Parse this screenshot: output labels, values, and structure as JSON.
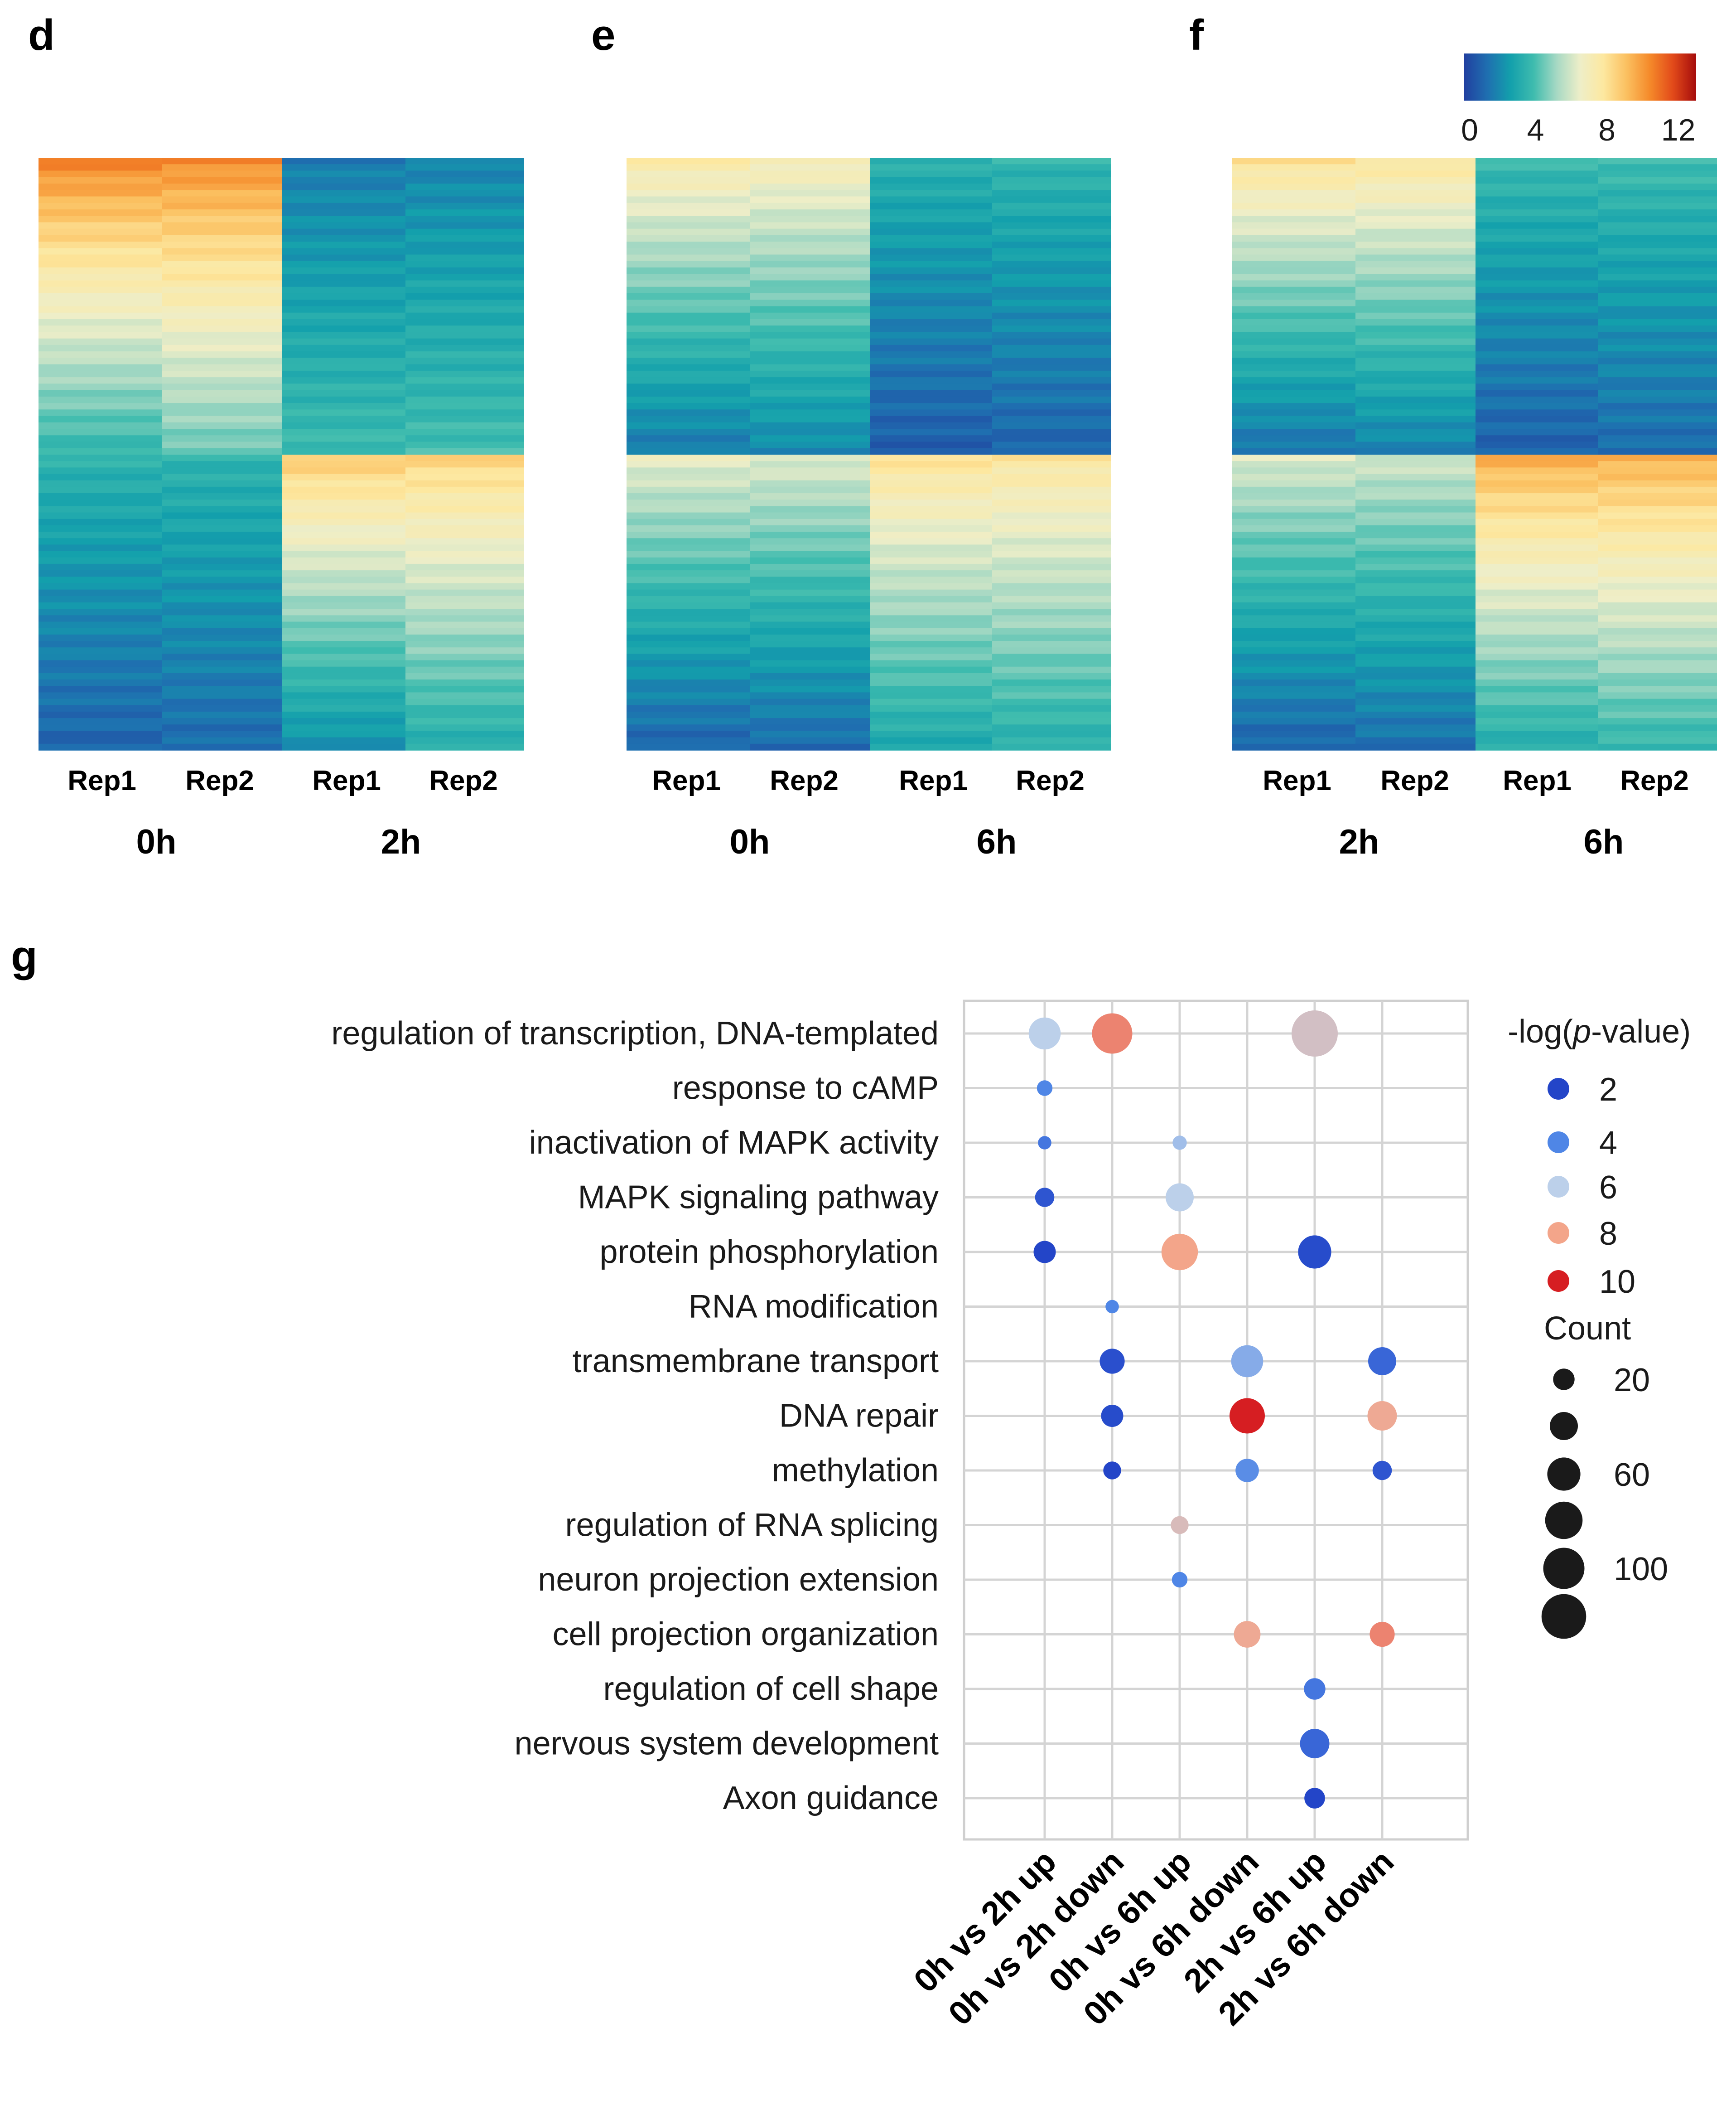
{
  "colors": {
    "heat_stops": [
      "#2140a0",
      "#1f6fb0",
      "#13a0ac",
      "#3fbcae",
      "#a8d9c4",
      "#eeeec8",
      "#fde8a0",
      "#fbc060",
      "#f58a2a",
      "#e24a1a",
      "#a50c0c"
    ],
    "pvalue_scale": [
      "#2345c8",
      "#4f86e6",
      "#bcd0ea",
      "#f3a58a",
      "#d61e22"
    ],
    "grid": "#d4d4d4"
  },
  "heatmaps": [
    {
      "letter": "d",
      "columns": [
        "Rep1",
        "Rep2",
        "Rep1",
        "Rep2"
      ],
      "timepoints": [
        "0h",
        "2h"
      ],
      "blocks": {
        "top": [
          [
            10.6,
            3.6
          ],
          [
            10.4,
            4.4
          ],
          [
            1.6,
            3.8
          ],
          [
            1.8,
            3.9
          ]
        ],
        "bottom": [
          [
            3.5,
            1.0
          ],
          [
            3.5,
            1.2
          ],
          [
            8.8,
            2.2
          ],
          [
            8.5,
            3.2
          ]
        ]
      }
    },
    {
      "letter": "e",
      "columns": [
        "Rep1",
        "Rep2",
        "Rep1",
        "Rep2"
      ],
      "timepoints": [
        "0h",
        "6h"
      ],
      "blocks": {
        "top": [
          [
            7.5,
            1.6
          ],
          [
            7.2,
            2.0
          ],
          [
            3.4,
            0.8
          ],
          [
            3.6,
            1.0
          ]
        ],
        "bottom": [
          [
            6.5,
            1.0
          ],
          [
            6.3,
            1.2
          ],
          [
            8.0,
            3.0
          ],
          [
            7.8,
            3.3
          ]
        ]
      }
    },
    {
      "letter": "f",
      "columns": [
        "Rep1",
        "Rep2",
        "Rep1",
        "Rep2"
      ],
      "timepoints": [
        "2h",
        "6h"
      ],
      "blocks": {
        "top": [
          [
            8.0,
            1.4
          ],
          [
            7.8,
            1.8
          ],
          [
            3.8,
            0.9
          ],
          [
            3.9,
            1.2
          ]
        ],
        "bottom": [
          [
            6.2,
            1.0
          ],
          [
            6.0,
            1.3
          ],
          [
            9.6,
            3.2
          ],
          [
            9.5,
            3.6
          ]
        ]
      }
    }
  ],
  "colorbar": {
    "ticks": [
      "0",
      "4",
      "8",
      "12"
    ],
    "min": 0,
    "max": 13
  },
  "chart_data": {
    "type": "scatter",
    "letter": "g",
    "title": "",
    "categories": [
      "0h vs 2h up",
      "0h vs 2h down",
      "0h vs 6h up",
      "0h vs 6h down",
      "2h vs 6h up",
      "2h vs 6h down"
    ],
    "terms": [
      "regulation of transcription, DNA-templated",
      "response to cAMP",
      "inactivation of MAPK activity",
      "MAPK signaling pathway",
      "protein phosphorylation",
      "RNA modification",
      "transmembrane transport",
      "DNA repair",
      "methylation",
      "regulation of RNA splicing",
      "neuron projection extension",
      "cell projection organization",
      "regulation of cell shape",
      "nervous system development",
      "Axon guidance"
    ],
    "points": [
      {
        "term": 0,
        "cat": 0,
        "count": 55,
        "p": 6
      },
      {
        "term": 0,
        "cat": 1,
        "count": 95,
        "p": 8.5
      },
      {
        "term": 0,
        "cat": 4,
        "count": 130,
        "p": 6.8
      },
      {
        "term": 1,
        "cat": 0,
        "count": 8,
        "p": 4
      },
      {
        "term": 2,
        "cat": 0,
        "count": 5,
        "p": 3.5
      },
      {
        "term": 2,
        "cat": 2,
        "count": 6,
        "p": 5.5
      },
      {
        "term": 3,
        "cat": 0,
        "count": 15,
        "p": 2.5
      },
      {
        "term": 3,
        "cat": 2,
        "count": 40,
        "p": 6
      },
      {
        "term": 4,
        "cat": 0,
        "count": 22,
        "p": 2
      },
      {
        "term": 4,
        "cat": 2,
        "count": 75,
        "p": 8
      },
      {
        "term": 4,
        "cat": 4,
        "count": 60,
        "p": 2.2
      },
      {
        "term": 5,
        "cat": 1,
        "count": 5,
        "p": 4
      },
      {
        "term": 6,
        "cat": 1,
        "count": 30,
        "p": 2.3
      },
      {
        "term": 6,
        "cat": 3,
        "count": 55,
        "p": 5
      },
      {
        "term": 6,
        "cat": 5,
        "count": 40,
        "p": 3
      },
      {
        "term": 7,
        "cat": 1,
        "count": 22,
        "p": 2.2
      },
      {
        "term": 7,
        "cat": 3,
        "count": 70,
        "p": 10.5
      },
      {
        "term": 7,
        "cat": 5,
        "count": 45,
        "p": 7.8
      },
      {
        "term": 8,
        "cat": 1,
        "count": 12,
        "p": 2
      },
      {
        "term": 8,
        "cat": 3,
        "count": 25,
        "p": 4.2
      },
      {
        "term": 8,
        "cat": 5,
        "count": 15,
        "p": 2.5
      },
      {
        "term": 9,
        "cat": 2,
        "count": 12,
        "p": 7
      },
      {
        "term": 10,
        "cat": 2,
        "count": 8,
        "p": 4
      },
      {
        "term": 11,
        "cat": 3,
        "count": 35,
        "p": 7.8
      },
      {
        "term": 11,
        "cat": 5,
        "count": 30,
        "p": 8.5
      },
      {
        "term": 12,
        "cat": 4,
        "count": 20,
        "p": 3.5
      },
      {
        "term": 13,
        "cat": 4,
        "count": 45,
        "p": 3
      },
      {
        "term": 14,
        "cat": 4,
        "count": 18,
        "p": 2
      }
    ],
    "legend": {
      "color_title_pre": "-log(",
      "color_title_p": "p",
      "color_title_post": "-value)",
      "color_values": [
        2,
        4,
        6,
        8,
        10
      ],
      "color_labels": [
        "2",
        "4",
        "6",
        "8",
        "10"
      ],
      "size_title": "Count",
      "size_values": [
        20,
        40,
        60,
        80,
        100,
        120
      ],
      "size_labels": [
        "20",
        "",
        "60",
        "",
        "100",
        ""
      ]
    }
  }
}
